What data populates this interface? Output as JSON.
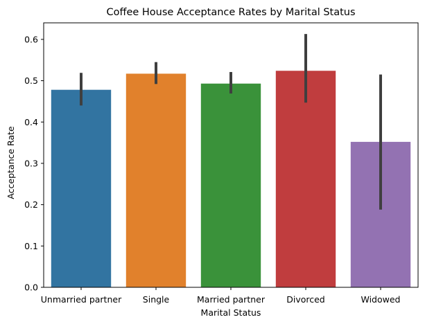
{
  "chart_data": {
    "type": "bar",
    "title": "Coffee House Acceptance Rates by Marital Status",
    "xlabel": "Marital Status",
    "ylabel": "Acceptance Rate",
    "categories": [
      "Unmarried partner",
      "Single",
      "Married partner",
      "Divorced",
      "Widowed"
    ],
    "values": [
      0.478,
      0.517,
      0.493,
      0.524,
      0.352
    ],
    "error_low": [
      0.44,
      0.492,
      0.469,
      0.447,
      0.188
    ],
    "error_high": [
      0.519,
      0.545,
      0.521,
      0.613,
      0.515
    ],
    "colors": [
      "#3274a1",
      "#e1812c",
      "#3a923a",
      "#c03d3e",
      "#9372b2"
    ],
    "error_color": "#3f3f3f",
    "ylim": [
      0,
      0.64
    ],
    "yticks": [
      0.0,
      0.1,
      0.2,
      0.3,
      0.4,
      0.5,
      0.6
    ],
    "ytick_labels": [
      "0.0",
      "0.1",
      "0.2",
      "0.3",
      "0.4",
      "0.5",
      "0.6"
    ],
    "grid": false,
    "legend": "none"
  }
}
